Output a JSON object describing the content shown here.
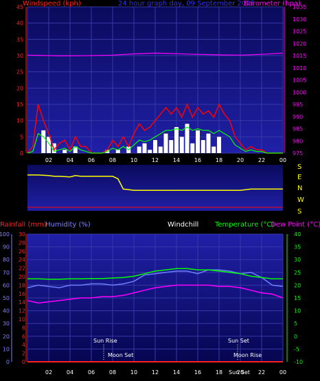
{
  "colors": {
    "background": "#000000",
    "plot_top": "#0a0a5c",
    "plot_bottom_top": "#2020a8",
    "plot_bottom_bot": "#050550",
    "grid": "#3838a8",
    "windspeed": "#ff0000",
    "windavg": "#00ff00",
    "gust_bars": "#ffffff",
    "barometer": "#ff00ff",
    "direction": "#ffff00",
    "temperature": "#00ff00",
    "humidity": "#6b7fff",
    "dewpoint": "#ff00ff",
    "rainfall": "#ff2020",
    "label_white": "#ffffff",
    "label_red": "#ff2020",
    "label_blue": "#3030ff",
    "label_magenta": "#ff00ff",
    "label_yellow": "#ffff00",
    "label_green": "#00ff00",
    "label_humidity": "#8080ff"
  },
  "header": {
    "windspeed": "Windspeed (kph)",
    "title": "24 hour graph day, 09 September 2025",
    "barometer": "Barometer (hpa)"
  },
  "bottom_header": {
    "rainfall": "Rainfall (mm)",
    "humidity": "Humidity (%)",
    "windchill": "Windchill",
    "temperature": "Temperature (°C)",
    "dewpoint": "Dew Point (°C)"
  },
  "directions": [
    "S",
    "E",
    "N",
    "W",
    "S"
  ],
  "annotations": {
    "sunrise": "Sun Rise",
    "moonset": "Moon Set",
    "sunset": "Sun Set",
    "moonrise": "Moon Rise",
    "sunset_lower": "Sun Set"
  },
  "chart_data": [
    {
      "type": "line",
      "name": "wind-barometer",
      "x_ticks": [
        "02",
        "04",
        "06",
        "08",
        "10",
        "12",
        "14",
        "16",
        "18",
        "20",
        "22",
        "00"
      ],
      "ylim_left": [
        0,
        45
      ],
      "yticks_left": [
        0,
        5,
        10,
        15,
        20,
        25,
        30,
        35,
        40,
        45
      ],
      "ylim_right": [
        975,
        1035
      ],
      "yticks_right": [
        975,
        980,
        985,
        990,
        995,
        1000,
        1005,
        1010,
        1015,
        1020,
        1025,
        1030,
        1035
      ],
      "series": [
        {
          "x": [
            0,
            1,
            2,
            3,
            4,
            6,
            8,
            10,
            12,
            14,
            16,
            18,
            20,
            22,
            24
          ],
          "values": [
            1015.2,
            1015.1,
            1015.0,
            1014.9,
            1014.9,
            1015.0,
            1015.2,
            1015.7,
            1016.0,
            1015.8,
            1015.5,
            1015.3,
            1015.2,
            1015.5,
            1016.0
          ]
        },
        {
          "x": [
            0,
            0.5,
            1.0,
            1.5,
            2.0,
            2.5,
            3.0,
            3.5,
            4.0,
            4.5,
            5.0,
            5.5,
            6.0,
            6.5,
            7.0,
            7.5,
            8.0,
            8.5,
            9.0,
            9.5,
            10.0,
            10.5,
            11.0,
            11.5,
            12.0,
            12.5,
            13.0,
            13.5,
            14.0,
            14.5,
            15.0,
            15.5,
            16.0,
            16.5,
            17.0,
            17.5,
            18.0,
            18.5,
            19.0,
            19.5,
            20.0,
            20.5,
            21.0,
            21.5,
            22.0,
            22.5,
            23.0,
            23.5,
            24.0
          ],
          "values": [
            0,
            2,
            15,
            10,
            6,
            1,
            3,
            4,
            1,
            5,
            2,
            2,
            0,
            0,
            0,
            1,
            4,
            2,
            5,
            2,
            6,
            9,
            7,
            8,
            10,
            12,
            14,
            12,
            14,
            11,
            15,
            11,
            14,
            12,
            13,
            11,
            15,
            12,
            10,
            5,
            3,
            1,
            2,
            1,
            1,
            0,
            0,
            0,
            0
          ]
        },
        {
          "x": [
            0,
            0.5,
            1.0,
            1.5,
            2.0,
            2.5,
            3.0,
            3.5,
            4.0,
            4.5,
            5.0,
            5.5,
            6.0,
            6.5,
            7.0,
            7.5,
            8.0,
            8.5,
            9.0,
            9.5,
            10.0,
            10.5,
            11.0,
            11.5,
            12.0,
            12.5,
            13.0,
            13.5,
            14.0,
            14.5,
            15.0,
            15.5,
            16.0,
            16.5,
            17.0,
            17.5,
            18.0,
            18.5,
            19.0,
            19.5,
            20.0,
            20.5,
            21.0,
            21.5,
            22.0,
            22.5,
            23.0,
            23.5,
            24.0
          ],
          "values": [
            0,
            0.5,
            6,
            5,
            3,
            0.5,
            1,
            1.5,
            0.5,
            2,
            1,
            0.5,
            0,
            0,
            0,
            0.5,
            1.5,
            1,
            2,
            1,
            2.5,
            4,
            3.5,
            4,
            5,
            6,
            7,
            7,
            7.5,
            7,
            8,
            7,
            7.5,
            7,
            7,
            6,
            7,
            6,
            5,
            2.5,
            1.5,
            0.5,
            1,
            0.5,
            0.5,
            0,
            0,
            0,
            0
          ]
        },
        {
          "x": [
            1.5,
            2.0,
            2.5,
            3.5,
            4.5,
            7.5,
            8.5,
            9.5,
            10.5,
            11.0,
            11.5,
            12.0,
            12.5,
            13.0,
            13.5,
            14.0,
            14.5,
            15.0,
            15.5,
            16.0,
            16.5,
            17.0,
            17.5,
            18.0
          ],
          "values": [
            7,
            5,
            3,
            1,
            2,
            1,
            1,
            2,
            2,
            3,
            1,
            4,
            2,
            6,
            4,
            8,
            5,
            9,
            3,
            7,
            4,
            6,
            2,
            5
          ]
        }
      ]
    },
    {
      "type": "scatter",
      "name": "wind-direction",
      "y_categories": [
        "S",
        "E",
        "N",
        "W",
        "S"
      ],
      "series": [
        {
          "x": [
            0,
            1,
            2,
            2.5,
            3,
            4,
            4.5,
            5,
            6,
            7,
            8,
            8.5,
            9,
            9.5,
            10,
            12,
            14,
            16,
            18,
            19,
            20,
            21,
            22,
            23,
            24
          ],
          "values": [
            80,
            80,
            85,
            90,
            90,
            95,
            85,
            90,
            90,
            90,
            90,
            110,
            190,
            195,
            200,
            200,
            200,
            200,
            200,
            200,
            200,
            190,
            190,
            190,
            190
          ]
        }
      ]
    },
    {
      "type": "line",
      "name": "temperature-humidity",
      "x_ticks": [
        "02",
        "04",
        "06",
        "08",
        "10",
        "12",
        "14",
        "16",
        "18",
        "20",
        "22",
        "00"
      ],
      "ylim_left_rain": [
        0,
        30
      ],
      "yticks_left_rain": [
        0,
        2,
        4,
        6,
        8,
        10,
        12,
        14,
        16,
        18,
        20,
        22,
        24,
        26,
        28,
        30
      ],
      "ylim_humidity": [
        0,
        100
      ],
      "yticks_humidity": [
        0,
        10,
        20,
        30,
        40,
        50,
        60,
        70,
        80,
        90,
        100
      ],
      "ylim_right_temp": [
        -10,
        40
      ],
      "yticks_right_temp": [
        -10,
        -5,
        0,
        5,
        10,
        15,
        20,
        25,
        30,
        35,
        40
      ],
      "series": [
        {
          "x": [
            0,
            1,
            2,
            3,
            4,
            5,
            6,
            7,
            8,
            9,
            10,
            11,
            12,
            13,
            14,
            15,
            16,
            17,
            18,
            19,
            20,
            21,
            22,
            23,
            24
          ],
          "values": [
            22.5,
            22.5,
            22.3,
            22.3,
            22.5,
            22.5,
            22.6,
            22.6,
            22.8,
            23.0,
            23.5,
            24.5,
            25.5,
            26.0,
            26.5,
            26.5,
            26.0,
            26.0,
            25.5,
            25.0,
            24.5,
            23.5,
            23.0,
            22.5,
            22.5
          ]
        },
        {
          "x": [
            0,
            1,
            2,
            3,
            4,
            5,
            6,
            7,
            8,
            9,
            10,
            11,
            12,
            13,
            14,
            15,
            16,
            17,
            18,
            19,
            20,
            21,
            22,
            23,
            24
          ],
          "values": [
            58,
            60,
            59,
            58,
            60,
            60,
            61,
            61,
            60,
            61,
            63,
            68,
            69,
            70,
            71,
            71,
            69,
            72,
            72,
            71,
            69,
            70,
            66,
            60,
            59
          ]
        },
        {
          "x": [
            0,
            1,
            2,
            3,
            4,
            5,
            6,
            7,
            8,
            9,
            10,
            11,
            12,
            13,
            14,
            15,
            16,
            17,
            18,
            19,
            20,
            21,
            22,
            23,
            24
          ],
          "values": [
            14.0,
            13.0,
            13.5,
            14.0,
            14.5,
            15.0,
            15.0,
            15.5,
            15.5,
            16.0,
            17.0,
            18.0,
            19.0,
            19.5,
            20.0,
            20.0,
            20.0,
            20.0,
            19.5,
            19.5,
            19.0,
            18.0,
            17.0,
            16.5,
            15.0
          ]
        },
        {
          "x": [
            0,
            24
          ],
          "values": [
            0,
            0
          ]
        }
      ]
    }
  ]
}
